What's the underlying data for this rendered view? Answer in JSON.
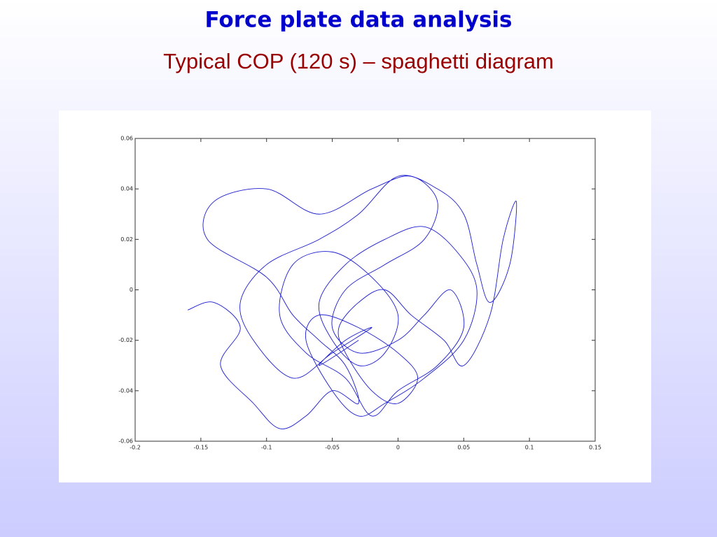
{
  "chart_data": {
    "type": "line",
    "title": "Force plate data analysis",
    "subtitle": "Typical COP (120 s) – spaghetti diagram",
    "xlim": [
      -0.2,
      0.15
    ],
    "xticks": [
      -0.2,
      -0.15,
      -0.1,
      -0.05,
      0,
      0.05,
      0.1,
      0.15
    ],
    "ylim": [
      -0.06,
      0.06
    ],
    "yticks": [
      -0.06,
      -0.04,
      -0.02,
      0,
      0.02,
      0.04,
      0.06
    ],
    "series": [
      {
        "color": "#1a1ad0",
        "x": [
          -0.16,
          -0.14,
          -0.12,
          -0.135,
          -0.11,
          -0.09,
          -0.07,
          -0.05,
          -0.03,
          -0.04,
          -0.06,
          -0.08,
          -0.1,
          -0.145,
          -0.14,
          -0.1,
          -0.06,
          -0.02,
          0.01,
          0.03,
          0.02,
          -0.01,
          -0.04,
          -0.05,
          -0.03,
          0.0,
          0.02,
          0.04,
          0.05,
          0.03,
          0.0,
          -0.02,
          -0.04,
          -0.07,
          -0.09,
          -0.08,
          -0.05,
          -0.02,
          0.0,
          -0.01,
          -0.03,
          -0.05,
          -0.06,
          -0.04,
          -0.01,
          0.02,
          0.045,
          0.06,
          0.05,
          0.02,
          -0.01,
          -0.03,
          -0.05,
          -0.07,
          -0.06,
          -0.03,
          0.0,
          0.015,
          0.0,
          -0.02,
          -0.04,
          -0.045,
          -0.03,
          -0.01,
          0.01,
          0.035,
          0.05,
          0.07,
          0.08,
          0.09,
          0.085,
          0.07,
          0.06,
          0.05,
          0.03,
          0.0,
          -0.03,
          -0.06,
          -0.1,
          -0.12,
          -0.11,
          -0.08,
          -0.05,
          -0.02,
          -0.04,
          -0.06,
          -0.03
        ],
        "values": [
          -0.008,
          -0.005,
          -0.015,
          -0.03,
          -0.045,
          -0.055,
          -0.05,
          -0.04,
          -0.045,
          -0.03,
          -0.02,
          -0.01,
          0.005,
          0.02,
          0.035,
          0.04,
          0.03,
          0.04,
          0.045,
          0.035,
          0.02,
          0.01,
          0.0,
          -0.015,
          -0.025,
          -0.02,
          -0.01,
          0.0,
          -0.015,
          -0.03,
          -0.04,
          -0.05,
          -0.035,
          -0.025,
          -0.01,
          0.01,
          0.015,
          0.005,
          -0.01,
          -0.025,
          -0.03,
          -0.02,
          -0.005,
          0.01,
          0.02,
          0.025,
          0.015,
          0.0,
          -0.02,
          -0.035,
          -0.045,
          -0.05,
          -0.04,
          -0.02,
          -0.01,
          -0.015,
          -0.025,
          -0.035,
          -0.045,
          -0.04,
          -0.025,
          -0.015,
          -0.005,
          0.0,
          -0.01,
          -0.02,
          -0.03,
          -0.01,
          0.02,
          0.035,
          0.01,
          -0.005,
          0.01,
          0.03,
          0.04,
          0.045,
          0.03,
          0.02,
          0.01,
          -0.005,
          -0.02,
          -0.035,
          -0.025,
          -0.015,
          -0.02,
          -0.03,
          -0.02
        ]
      }
    ]
  }
}
